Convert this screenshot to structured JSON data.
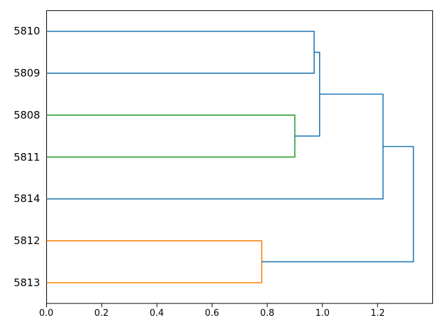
{
  "figure": {
    "background": "#ffffff",
    "axes_border_color": "#000000",
    "tick_color": "#000000"
  },
  "chart_data": {
    "type": "dendrogram",
    "orientation": "right",
    "title": "",
    "xlabel": "",
    "ylabel": "",
    "grid": false,
    "legend": null,
    "xlim": [
      0,
      1.4
    ],
    "x_ticks": [
      "0.0",
      "0.2",
      "0.4",
      "0.6",
      "0.8",
      "1.0",
      "1.2"
    ],
    "x_tick_values": [
      0.0,
      0.2,
      0.4,
      0.6,
      0.8,
      1.0,
      1.2
    ],
    "leaf_labels": [
      "5810",
      "5809",
      "5808",
      "5811",
      "5814",
      "5812",
      "5813"
    ],
    "colors": {
      "above_threshold_link": "#1f77b4",
      "cluster_orange": "#ff7f0e",
      "cluster_green": "#2ca02c"
    },
    "merges": [
      {
        "pair": [
          "5812",
          "5813"
        ],
        "height": 0.78,
        "color": "#ff7f0e"
      },
      {
        "pair": [
          "5808",
          "5811"
        ],
        "height": 0.9,
        "color": "#2ca02c"
      },
      {
        "pair": [
          "5810",
          "5809"
        ],
        "height": 0.97,
        "color": "#1f77b4"
      },
      {
        "pair": [
          "(5810,5809)",
          "(5808,5811)"
        ],
        "height": 0.99,
        "color": "#1f77b4"
      },
      {
        "pair": [
          "(5810,5809,5808,5811)",
          "5814"
        ],
        "height": 1.22,
        "color": "#1f77b4"
      },
      {
        "pair": [
          "(5810,5809,5808,5811,5814)",
          "(5812,5813)"
        ],
        "height": 1.33,
        "color": "#1f77b4"
      }
    ],
    "links": [
      {
        "color": "#1f77b4",
        "points": [
          [
            0,
            0
          ],
          [
            0.97,
            0
          ],
          [
            0.97,
            1
          ],
          [
            0,
            1
          ]
        ]
      },
      {
        "color": "#2ca02c",
        "points": [
          [
            0,
            2
          ],
          [
            0.9,
            2
          ],
          [
            0.9,
            3
          ],
          [
            0,
            3
          ]
        ]
      },
      {
        "color": "#ff7f0e",
        "points": [
          [
            0,
            5
          ],
          [
            0.78,
            5
          ],
          [
            0.78,
            6
          ],
          [
            0,
            6
          ]
        ]
      },
      {
        "color": "#1f77b4",
        "points": [
          [
            0.97,
            0.5
          ],
          [
            0.99,
            0.5
          ],
          [
            0.99,
            2.5
          ],
          [
            0.9,
            2.5
          ]
        ]
      },
      {
        "color": "#1f77b4",
        "points": [
          [
            0.99,
            1.5
          ],
          [
            1.22,
            1.5
          ],
          [
            1.22,
            4
          ],
          [
            0,
            4
          ]
        ]
      },
      {
        "color": "#1f77b4",
        "points": [
          [
            1.22,
            2.75
          ],
          [
            1.33,
            2.75
          ],
          [
            1.33,
            5.5
          ],
          [
            0.78,
            5.5
          ]
        ]
      }
    ]
  }
}
